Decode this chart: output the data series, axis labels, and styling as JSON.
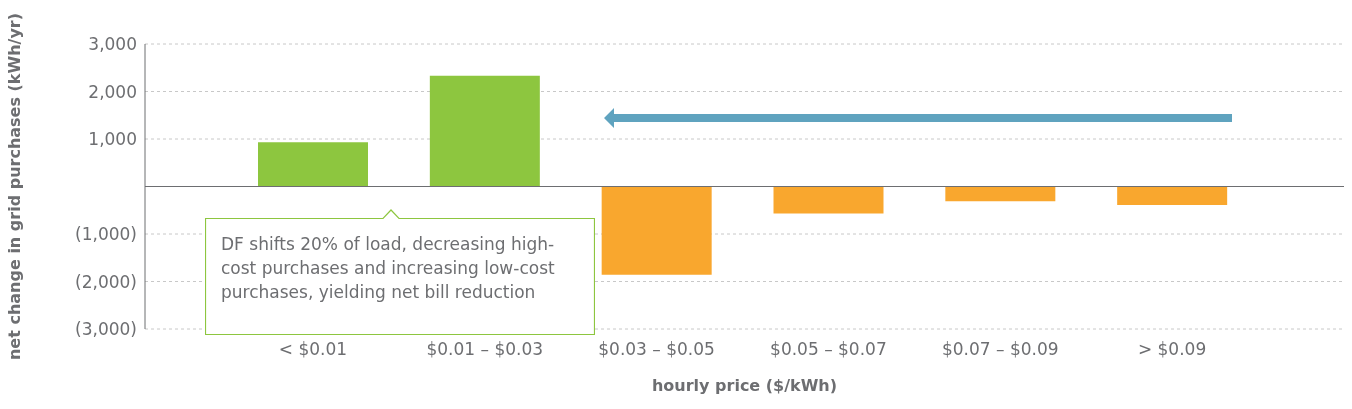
{
  "chart_data": {
    "type": "bar",
    "xlabel": "hourly price ($/kWh)",
    "ylabel": "net change in grid purchases (kWh/yr)",
    "categories": [
      "< $0.01",
      "$0.01 – $0.03",
      "$0.03 – $0.05",
      "$0.05 – $0.07",
      "$0.07 – $0.09",
      "> $0.09"
    ],
    "values": [
      930,
      2330,
      -1860,
      -570,
      -310,
      -390
    ],
    "colors": [
      "#8dc63f",
      "#8dc63f",
      "#f9a72e",
      "#f9a72e",
      "#f9a72e",
      "#f9a72e"
    ],
    "ylim": [
      -3000,
      3000
    ],
    "yticks": [
      {
        "value": -3000,
        "label": "(3,000)"
      },
      {
        "value": -2000,
        "label": "(2,000)"
      },
      {
        "value": -1000,
        "label": "(1,000)"
      },
      {
        "value": 0,
        "label": null
      },
      {
        "value": 1000,
        "label": "1,000"
      },
      {
        "value": 2000,
        "label": "2,000"
      },
      {
        "value": 3000,
        "label": "3,000"
      }
    ],
    "grid": "y",
    "annotations": [
      "DF shifts 20% of load, decreasing high-cost purchases and increasing low-cost purchases, yielding net bill reduction"
    ]
  }
}
